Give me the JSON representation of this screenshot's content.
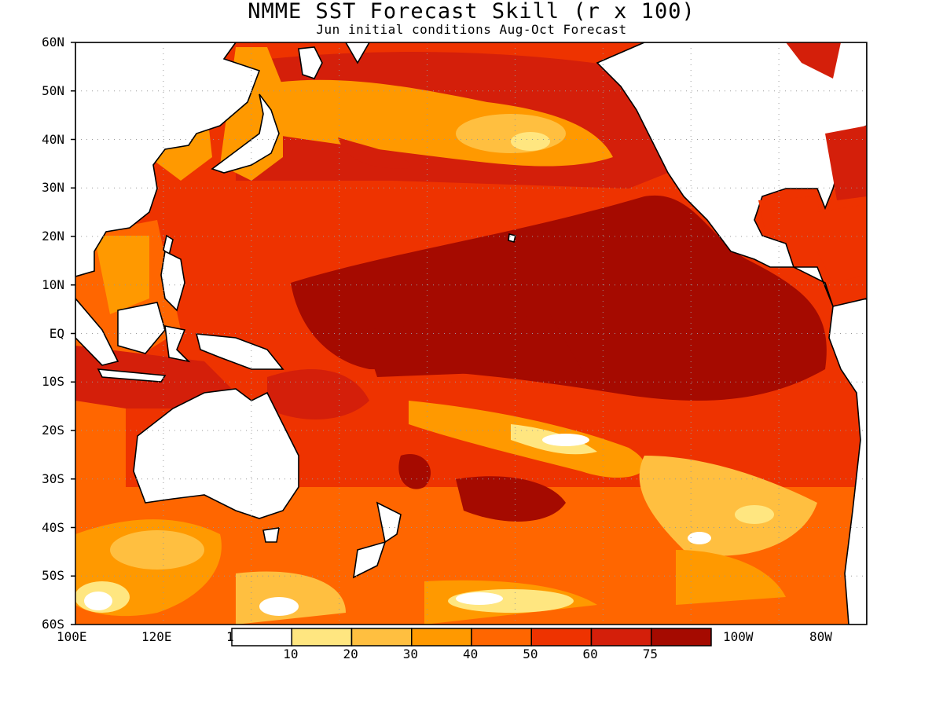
{
  "title": "NMME SST Forecast Skill (r x 100)",
  "subtitle": "Jun initial conditions  Aug-Oct Forecast",
  "map": {
    "lat_labels": [
      "60N",
      "50N",
      "40N",
      "30N",
      "20N",
      "10N",
      "EQ",
      "10S",
      "20S",
      "30S",
      "40S",
      "50S",
      "60S"
    ],
    "lon_labels_left": [
      "100E",
      "120E",
      "1"
    ],
    "lon_labels_right": [
      "100W",
      "80W"
    ],
    "land_color": "#ffffff",
    "coastline_color": "#000000"
  },
  "colorbar": {
    "labels": [
      "10",
      "20",
      "30",
      "40",
      "50",
      "60",
      "75"
    ],
    "colors": [
      "#ffffff",
      "#ffe680",
      "#ffbf40",
      "#ff9900",
      "#ff6600",
      "#ee3300",
      "#d41f0a",
      "#a50a00"
    ]
  }
}
